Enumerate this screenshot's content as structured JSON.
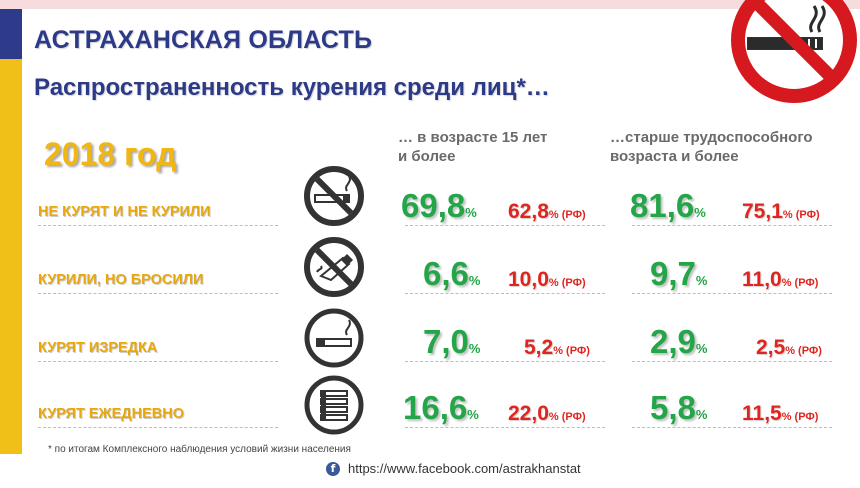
{
  "header": {
    "region": "АСТРАХАНСКАЯ ОБЛАСТЬ",
    "subtitle": "Распространенность курения среди лиц*…"
  },
  "year_label": "2018 год",
  "columns": {
    "col1": "… в возрасте 15 лет\nи более",
    "col2": "…старше трудоспособного\nвозраста и более"
  },
  "units": {
    "pct": "%",
    "rf": "% (РФ)"
  },
  "rows": [
    {
      "label": "НЕ КУРЯТ И НЕ КУРИЛИ",
      "icon": "no-smoking-icon",
      "v15": "69,8",
      "v15_rf": "62,8",
      "vold": "81,6",
      "vold_rf": "75,1"
    },
    {
      "label": "КУРИЛИ, НО БРОСИЛИ",
      "icon": "quit-smoking-icon",
      "v15": "6,6",
      "v15_rf": "10,0",
      "vold": "9,7",
      "vold_rf": "11,0"
    },
    {
      "label": "КУРЯТ ИЗРЕДКА",
      "icon": "single-cigarette-icon",
      "v15": "7,0",
      "v15_rf": "5,2",
      "vold": "2,9",
      "vold_rf": "2,5"
    },
    {
      "label": "КУРЯТ ЕЖЕДНЕВНО",
      "icon": "many-cigarettes-icon",
      "v15": "16,6",
      "v15_rf": "22,0",
      "vold": "5,8",
      "vold_rf": "11,5"
    }
  ],
  "footnote": "* по итогам Комплексного наблюдения условий жизни населения",
  "footer": {
    "link": "https://www.facebook.com/astrakhanstat",
    "icon": "facebook-icon"
  },
  "colors": {
    "green": "#23a548",
    "red": "#e0251f",
    "title": "#2c3a88",
    "accent": "#f0b614"
  }
}
